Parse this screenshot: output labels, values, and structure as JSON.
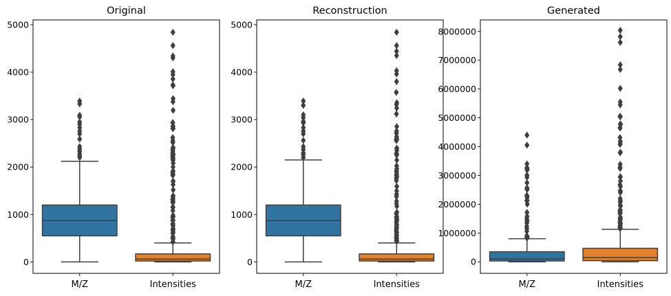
{
  "chart_data": [
    {
      "type": "box",
      "title": "Original",
      "ylim": [
        -240,
        5100
      ],
      "yticks": [
        0,
        1000,
        2000,
        3000,
        4000,
        5000
      ],
      "yticklabels": [
        "0",
        "1000",
        "2000",
        "3000",
        "4000",
        "5000"
      ],
      "categories": [
        "M/Z",
        "Intensities"
      ],
      "boxes": [
        {
          "name": "M/Z",
          "color": "#3274a1",
          "whisker_low": 0,
          "q1": 550,
          "median": 870,
          "q3": 1200,
          "whisker_high": 2120,
          "outliers": [
            2200,
            2240,
            2280,
            2330,
            2380,
            2430,
            2590,
            2700,
            2760,
            2830,
            2900,
            2950,
            3060,
            3090,
            3330,
            3390
          ]
        },
        {
          "name": "Intensities",
          "color": "#e1812c",
          "whisker_low": 0,
          "q1": 20,
          "median": 60,
          "q3": 170,
          "whisker_high": 400,
          "outliers_dense_range": [
            420,
            3880
          ],
          "outliers": [
            3950,
            4010,
            4300,
            4340,
            4560,
            4840
          ]
        }
      ]
    },
    {
      "type": "box",
      "title": "Reconstruction",
      "ylim": [
        -240,
        5100
      ],
      "yticks": [
        0,
        1000,
        2000,
        3000,
        4000,
        5000
      ],
      "yticklabels": [
        "0",
        "1000",
        "2000",
        "3000",
        "4000",
        "5000"
      ],
      "categories": [
        "M/Z",
        "Intensities"
      ],
      "boxes": [
        {
          "name": "M/Z",
          "color": "#3274a1",
          "whisker_low": 0,
          "q1": 550,
          "median": 870,
          "q3": 1200,
          "whisker_high": 2150,
          "outliers": [
            2200,
            2260,
            2300,
            2370,
            2430,
            2560,
            2700,
            2760,
            2830,
            2930,
            2960,
            3040,
            3100,
            3300,
            3390
          ]
        },
        {
          "name": "Intensities",
          "color": "#e1812c",
          "whisker_low": 0,
          "q1": 20,
          "median": 60,
          "q3": 170,
          "whisker_high": 400,
          "outliers_dense_range": [
            420,
            3700
          ],
          "outliers": [
            3800,
            3960,
            4030,
            4350,
            4440,
            4560,
            4840
          ]
        }
      ]
    },
    {
      "type": "box",
      "title": "Generated",
      "ylim": [
        -400000,
        8400000
      ],
      "yticks": [
        0,
        1000000,
        2000000,
        3000000,
        4000000,
        5000000,
        6000000,
        7000000,
        8000000
      ],
      "yticklabels": [
        "0",
        "1000000",
        "2000000",
        "3000000",
        "4000000",
        "5000000",
        "6000000",
        "7000000",
        "8000000"
      ],
      "categories": [
        "M/Z",
        "Intensities"
      ],
      "boxes": [
        {
          "name": "M/Z",
          "color": "#3274a1",
          "whisker_low": 0,
          "q1": 30000,
          "median": 100000,
          "q3": 350000,
          "whisker_high": 800000,
          "outliers_dense_range": [
            820000,
            3300000
          ],
          "outliers": [
            3400000,
            4050000,
            4400000
          ]
        },
        {
          "name": "Intensities",
          "color": "#e1812c",
          "whisker_low": 0,
          "q1": 40000,
          "median": 150000,
          "q3": 470000,
          "whisker_high": 1130000,
          "outliers_dense_range": [
            1150000,
            5300000
          ],
          "outliers": [
            5450000,
            5550000,
            6020000,
            6680000,
            6840000,
            7620000,
            7820000,
            8040000
          ]
        }
      ]
    }
  ]
}
